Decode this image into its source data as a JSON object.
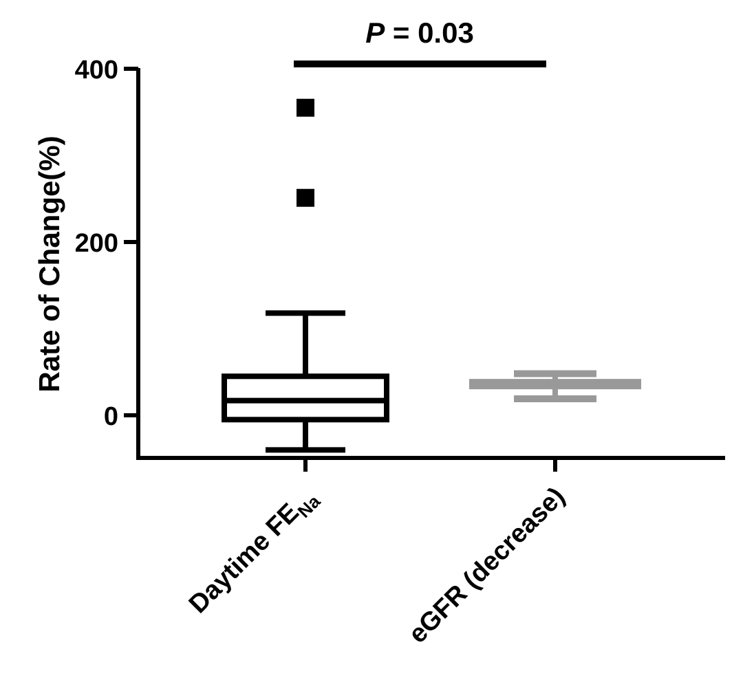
{
  "chart_data": {
    "type": "box",
    "ylabel": "Rate of Change(%)",
    "ylim": [
      -50,
      400
    ],
    "yticks": [
      0,
      200,
      400
    ],
    "grid": false,
    "legend": "none",
    "categories": [
      {
        "label": "Daytime FE",
        "label_sub": "Na"
      },
      {
        "label": "eGFR (decrease)",
        "label_sub": ""
      }
    ],
    "series": [
      {
        "category": "Daytime FE",
        "color": "#000000",
        "whisker_low": -40,
        "q1": -5,
        "median": 17,
        "q3": 45,
        "whisker_high": 118,
        "outliers": [
          355,
          251
        ]
      },
      {
        "category": "eGFR (decrease)",
        "color": "#999999",
        "whisker_low": 19,
        "q1": 34,
        "median": 36,
        "q3": 38,
        "whisker_high": 48,
        "outliers": []
      }
    ],
    "annotation": {
      "text_italic": "P",
      "text_rest": " = 0.03"
    }
  }
}
